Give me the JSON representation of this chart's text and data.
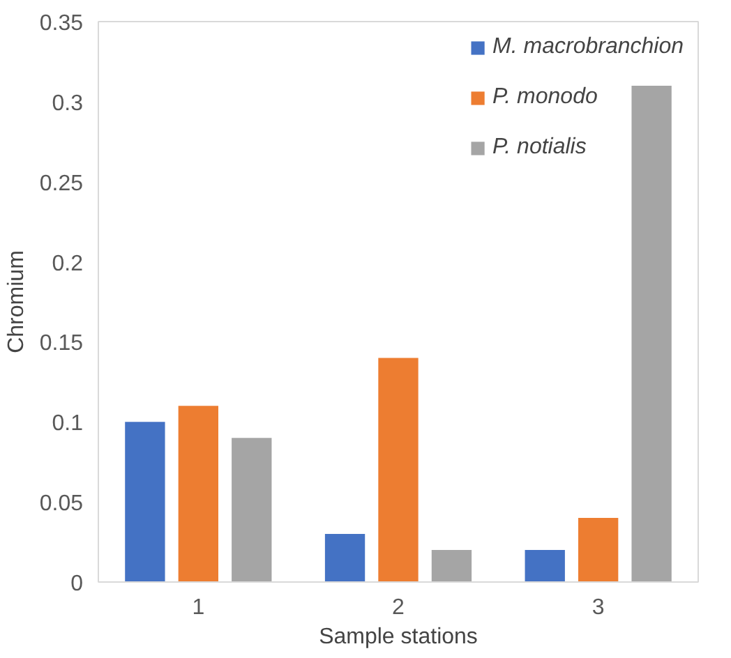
{
  "chart_data": {
    "type": "bar",
    "xlabel": "Sample stations",
    "ylabel": "Chromium",
    "categories": [
      "1",
      "2",
      "3"
    ],
    "series": [
      {
        "name": "M. macrobranchion",
        "color": "#4472c4",
        "values": [
          0.1,
          0.03,
          0.02
        ]
      },
      {
        "name": "P. monodo",
        "color": "#ed7d31",
        "values": [
          0.11,
          0.14,
          0.04
        ]
      },
      {
        "name": "P. notialis",
        "color": "#a5a5a5",
        "values": [
          0.09,
          0.02,
          0.31
        ]
      }
    ],
    "ylim": [
      0,
      0.35
    ],
    "yticks": [
      0,
      0.05,
      0.1,
      0.15,
      0.2,
      0.25,
      0.3,
      0.35
    ],
    "grid": false,
    "legend": "top right"
  }
}
